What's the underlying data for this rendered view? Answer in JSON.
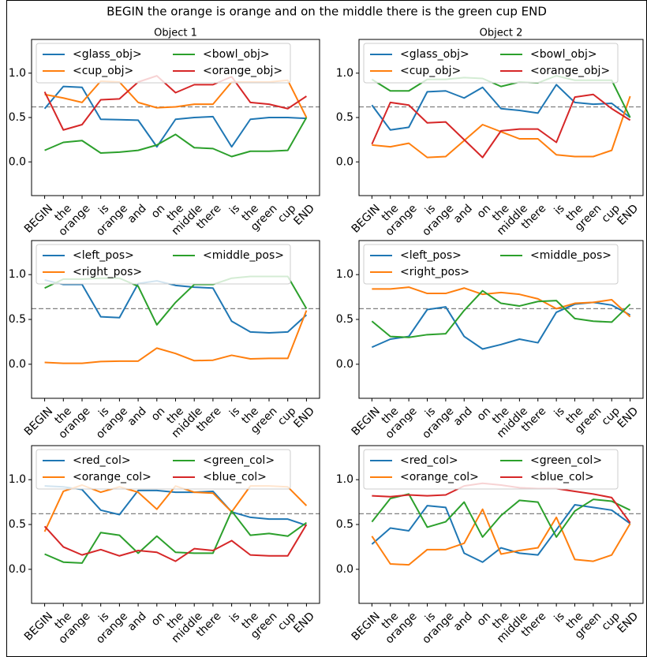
{
  "title": "BEGIN the orange is orange and on the middle there is the green cup END",
  "chart_data": [
    {
      "type": "line",
      "title": "Object 1",
      "legend": "upper left",
      "categories": [
        "BEGIN",
        "the",
        "orange",
        "is",
        "orange",
        "and",
        "on",
        "the",
        "middle",
        "there",
        "is",
        "the",
        "green",
        "cup",
        "END"
      ],
      "ylim": [
        -0.38,
        1.38
      ],
      "yticks": [
        {
          "value": 0,
          "label": "0.0"
        },
        {
          "value": 0.5,
          "label": "0.5"
        },
        {
          "value": 1,
          "label": "1.0"
        }
      ],
      "hline": 0.62,
      "hline_color": "#808080",
      "series": [
        {
          "name": "<glass_obj>",
          "color": "#1f77b4",
          "values": [
            0.6,
            0.85,
            0.84,
            0.48,
            0.475,
            0.47,
            0.17,
            0.48,
            0.5,
            0.51,
            0.17,
            0.48,
            0.5,
            0.5,
            0.49
          ]
        },
        {
          "name": "<cup_obj>",
          "color": "#ff7f0e",
          "values": [
            0.76,
            0.72,
            0.67,
            0.91,
            0.9,
            0.67,
            0.61,
            0.62,
            0.65,
            0.65,
            0.9,
            0.9,
            0.9,
            0.92,
            0.5
          ]
        },
        {
          "name": "<bowl_obj>",
          "color": "#2ca02c",
          "values": [
            0.13,
            0.22,
            0.24,
            0.1,
            0.11,
            0.13,
            0.19,
            0.31,
            0.16,
            0.15,
            0.06,
            0.12,
            0.12,
            0.13,
            0.5
          ]
        },
        {
          "name": "<orange_obj>",
          "color": "#d62728",
          "values": [
            0.79,
            0.36,
            0.42,
            0.7,
            0.71,
            0.9,
            0.97,
            0.78,
            0.87,
            0.87,
            0.96,
            0.67,
            0.65,
            0.6,
            0.74
          ]
        }
      ]
    },
    {
      "type": "line",
      "title": "Object 2",
      "legend": "upper left",
      "categories": [
        "BEGIN",
        "the",
        "orange",
        "is",
        "orange",
        "and",
        "on",
        "the",
        "middle",
        "there",
        "is",
        "the",
        "green",
        "cup",
        "END"
      ],
      "ylim": [
        -0.38,
        1.38
      ],
      "yticks": [
        {
          "value": 0,
          "label": "0.0"
        },
        {
          "value": 0.5,
          "label": "0.5"
        },
        {
          "value": 1,
          "label": "1.0"
        }
      ],
      "hline": 0.62,
      "hline_color": "#808080",
      "series": [
        {
          "name": "<glass_obj>",
          "color": "#1f77b4",
          "values": [
            0.64,
            0.36,
            0.39,
            0.79,
            0.8,
            0.72,
            0.84,
            0.6,
            0.58,
            0.55,
            0.87,
            0.67,
            0.65,
            0.66,
            0.5
          ]
        },
        {
          "name": "<cup_obj>",
          "color": "#ff7f0e",
          "values": [
            0.19,
            0.17,
            0.21,
            0.05,
            0.06,
            0.24,
            0.42,
            0.34,
            0.26,
            0.26,
            0.08,
            0.06,
            0.06,
            0.13,
            0.74
          ]
        },
        {
          "name": "<bowl_obj>",
          "color": "#2ca02c",
          "values": [
            0.93,
            0.8,
            0.8,
            0.93,
            0.93,
            0.95,
            0.94,
            0.85,
            0.9,
            0.89,
            0.97,
            0.92,
            0.92,
            0.92,
            0.5
          ]
        },
        {
          "name": "<orange_obj>",
          "color": "#d62728",
          "values": [
            0.2,
            0.67,
            0.64,
            0.44,
            0.45,
            0.25,
            0.05,
            0.35,
            0.37,
            0.37,
            0.22,
            0.73,
            0.76,
            0.6,
            0.47
          ]
        }
      ]
    },
    {
      "type": "line",
      "legend": "upper left",
      "categories": [
        "BEGIN",
        "the",
        "orange",
        "is",
        "orange",
        "and",
        "on",
        "the",
        "middle",
        "there",
        "is",
        "the",
        "green",
        "cup",
        "END"
      ],
      "ylim": [
        -0.38,
        1.38
      ],
      "yticks": [
        {
          "value": 0,
          "label": "0.0"
        },
        {
          "value": 0.5,
          "label": "0.5"
        },
        {
          "value": 1,
          "label": "1.0"
        }
      ],
      "hline": 0.62,
      "hline_color": "#808080",
      "series": [
        {
          "name": "<left_pos>",
          "color": "#1f77b4",
          "values": [
            0.94,
            0.89,
            0.89,
            0.53,
            0.52,
            0.9,
            0.93,
            0.88,
            0.86,
            0.85,
            0.48,
            0.36,
            0.35,
            0.36,
            0.55
          ]
        },
        {
          "name": "<right_pos>",
          "color": "#ff7f0e",
          "values": [
            0.02,
            0.01,
            0.01,
            0.03,
            0.035,
            0.035,
            0.18,
            0.12,
            0.04,
            0.045,
            0.1,
            0.06,
            0.065,
            0.065,
            0.6
          ]
        },
        {
          "name": "<middle_pos>",
          "color": "#2ca02c",
          "values": [
            0.85,
            0.95,
            0.95,
            0.96,
            0.96,
            0.87,
            0.44,
            0.69,
            0.89,
            0.89,
            0.96,
            0.98,
            0.98,
            0.98,
            0.62
          ]
        }
      ]
    },
    {
      "type": "line",
      "legend": "upper left",
      "categories": [
        "BEGIN",
        "the",
        "orange",
        "is",
        "orange",
        "and",
        "on",
        "the",
        "middle",
        "there",
        "is",
        "the",
        "green",
        "cup",
        "END"
      ],
      "ylim": [
        -0.38,
        1.38
      ],
      "yticks": [
        {
          "value": 0,
          "label": "0.0"
        },
        {
          "value": 0.5,
          "label": "0.5"
        },
        {
          "value": 1,
          "label": "1.0"
        }
      ],
      "hline": 0.62,
      "hline_color": "#808080",
      "series": [
        {
          "name": "<left_pos>",
          "color": "#1f77b4",
          "values": [
            0.19,
            0.28,
            0.31,
            0.61,
            0.64,
            0.31,
            0.17,
            0.22,
            0.28,
            0.24,
            0.58,
            0.67,
            0.69,
            0.66,
            0.55
          ]
        },
        {
          "name": "<right_pos>",
          "color": "#ff7f0e",
          "values": [
            0.84,
            0.84,
            0.86,
            0.79,
            0.79,
            0.85,
            0.78,
            0.8,
            0.78,
            0.73,
            0.62,
            0.68,
            0.69,
            0.72,
            0.53
          ]
        },
        {
          "name": "<middle_pos>",
          "color": "#2ca02c",
          "values": [
            0.48,
            0.31,
            0.3,
            0.33,
            0.34,
            0.6,
            0.82,
            0.68,
            0.65,
            0.7,
            0.71,
            0.51,
            0.48,
            0.47,
            0.67
          ]
        }
      ]
    },
    {
      "type": "line",
      "legend": "upper left",
      "categories": [
        "BEGIN",
        "the",
        "orange",
        "is",
        "orange",
        "and",
        "on",
        "the",
        "middle",
        "there",
        "is",
        "the",
        "green",
        "cup",
        "END"
      ],
      "ylim": [
        -0.38,
        1.38
      ],
      "yticks": [
        {
          "value": 0,
          "label": "0.0"
        },
        {
          "value": 0.5,
          "label": "0.5"
        },
        {
          "value": 1,
          "label": "1.0"
        }
      ],
      "hline": 0.62,
      "hline_color": "#808080",
      "series": [
        {
          "name": "<red_col>",
          "color": "#1f77b4",
          "values": [
            0.93,
            0.92,
            0.89,
            0.66,
            0.61,
            0.88,
            0.88,
            0.86,
            0.86,
            0.87,
            0.64,
            0.58,
            0.56,
            0.56,
            0.49
          ]
        },
        {
          "name": "<orange_col>",
          "color": "#ff7f0e",
          "values": [
            0.42,
            0.87,
            0.94,
            0.86,
            0.92,
            0.86,
            0.67,
            0.93,
            0.86,
            0.85,
            0.64,
            0.93,
            0.93,
            0.92,
            0.71
          ]
        },
        {
          "name": "<green_col>",
          "color": "#2ca02c",
          "values": [
            0.17,
            0.08,
            0.07,
            0.41,
            0.38,
            0.18,
            0.37,
            0.19,
            0.18,
            0.18,
            0.65,
            0.38,
            0.4,
            0.37,
            0.52
          ]
        },
        {
          "name": "<blue_col>",
          "color": "#d62728",
          "values": [
            0.48,
            0.25,
            0.16,
            0.22,
            0.15,
            0.21,
            0.19,
            0.09,
            0.23,
            0.21,
            0.32,
            0.16,
            0.15,
            0.15,
            0.5
          ]
        }
      ]
    },
    {
      "type": "line",
      "legend": "upper left",
      "categories": [
        "BEGIN",
        "the",
        "orange",
        "is",
        "orange",
        "and",
        "on",
        "the",
        "middle",
        "there",
        "is",
        "the",
        "green",
        "cup",
        "END"
      ],
      "ylim": [
        -0.38,
        1.38
      ],
      "yticks": [
        {
          "value": 0,
          "label": "0.0"
        },
        {
          "value": 0.5,
          "label": "0.5"
        },
        {
          "value": 1,
          "label": "1.0"
        }
      ],
      "hline": 0.62,
      "hline_color": "#808080",
      "series": [
        {
          "name": "<red_col>",
          "color": "#1f77b4",
          "values": [
            0.28,
            0.46,
            0.43,
            0.71,
            0.69,
            0.18,
            0.08,
            0.24,
            0.18,
            0.16,
            0.44,
            0.72,
            0.69,
            0.66,
            0.51
          ]
        },
        {
          "name": "<orange_col>",
          "color": "#ff7f0e",
          "values": [
            0.37,
            0.06,
            0.05,
            0.22,
            0.22,
            0.29,
            0.67,
            0.17,
            0.21,
            0.24,
            0.58,
            0.11,
            0.09,
            0.16,
            0.51
          ]
        },
        {
          "name": "<green_col>",
          "color": "#2ca02c",
          "values": [
            0.53,
            0.79,
            0.84,
            0.47,
            0.53,
            0.75,
            0.36,
            0.6,
            0.77,
            0.75,
            0.36,
            0.65,
            0.78,
            0.76,
            0.66
          ]
        },
        {
          "name": "<blue_col>",
          "color": "#d62728",
          "values": [
            0.82,
            0.81,
            0.83,
            0.82,
            0.83,
            0.93,
            0.96,
            0.94,
            0.91,
            0.9,
            0.9,
            0.87,
            0.84,
            0.8,
            0.52
          ]
        }
      ]
    }
  ]
}
